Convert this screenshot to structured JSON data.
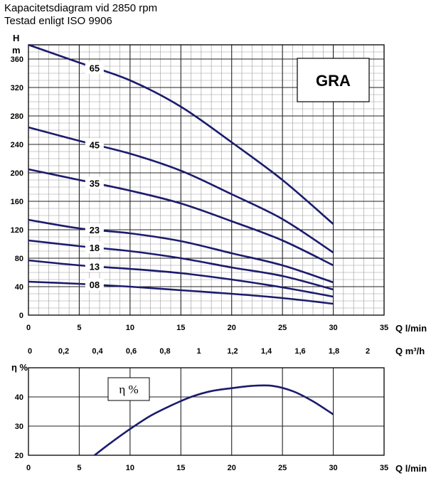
{
  "header": {
    "title": "Kapacitetsdiagram vid 2850 rpm",
    "subtitle": "Testad enligt ISO 9906"
  },
  "chart_data": [
    {
      "type": "line",
      "ylabel_top": "H",
      "ylabel_unit": "m",
      "xlabel": "Q l/min",
      "xlim": [
        0,
        35
      ],
      "ylim": [
        0,
        380
      ],
      "x_ticks": [
        "0",
        "5",
        "10",
        "15",
        "20",
        "25",
        "30",
        "35"
      ],
      "y_ticks": [
        "0",
        "40",
        "80",
        "120",
        "160",
        "200",
        "240",
        "280",
        "320",
        "360"
      ],
      "secondary_x": {
        "label": "Q m³/h",
        "ticks": [
          "0",
          "0,2",
          "0,4",
          "0,6",
          "0,8",
          "1",
          "1,2",
          "1,4",
          "1,6",
          "1,8",
          "2"
        ]
      },
      "box_label": "GRA",
      "series": [
        {
          "name": "65",
          "x": [
            0,
            5,
            10,
            15,
            20,
            25,
            30
          ],
          "y": [
            380,
            355,
            330,
            293,
            243,
            190,
            128
          ]
        },
        {
          "name": "45",
          "x": [
            0,
            5,
            10,
            15,
            20,
            25,
            30
          ],
          "y": [
            264,
            245,
            227,
            203,
            170,
            135,
            88
          ]
        },
        {
          "name": "35",
          "x": [
            0,
            5,
            10,
            15,
            20,
            25,
            30
          ],
          "y": [
            205,
            190,
            175,
            157,
            132,
            105,
            70
          ]
        },
        {
          "name": "23",
          "x": [
            0,
            5,
            10,
            15,
            20,
            25,
            30
          ],
          "y": [
            134,
            122,
            115,
            104,
            87,
            70,
            46
          ]
        },
        {
          "name": "18",
          "x": [
            0,
            5,
            10,
            15,
            20,
            25,
            30
          ],
          "y": [
            105,
            97,
            90,
            80,
            67,
            55,
            36
          ]
        },
        {
          "name": "13",
          "x": [
            0,
            5,
            10,
            15,
            20,
            25,
            30
          ],
          "y": [
            77,
            70,
            65,
            59,
            50,
            39,
            26
          ]
        },
        {
          "name": "08",
          "x": [
            0,
            5,
            10,
            15,
            20,
            25,
            30
          ],
          "y": [
            47,
            44,
            40,
            35,
            30,
            24,
            16
          ]
        }
      ]
    },
    {
      "type": "line",
      "ylabel": "η %",
      "xlabel": "Q l/min",
      "xlim": [
        0,
        35
      ],
      "ylim": [
        20,
        50
      ],
      "x_ticks": [
        "0",
        "5",
        "10",
        "15",
        "20",
        "25",
        "30",
        "35"
      ],
      "y_ticks": [
        "20",
        "30",
        "40"
      ],
      "legend_label": "η %",
      "series": [
        {
          "name": "η %",
          "x": [
            6.5,
            8,
            10,
            12,
            14,
            16,
            18,
            20,
            22,
            24,
            26,
            28,
            30
          ],
          "y": [
            20,
            24,
            29,
            33.5,
            37,
            40,
            42,
            43,
            43.8,
            43.8,
            42,
            38.5,
            34
          ]
        }
      ]
    }
  ]
}
